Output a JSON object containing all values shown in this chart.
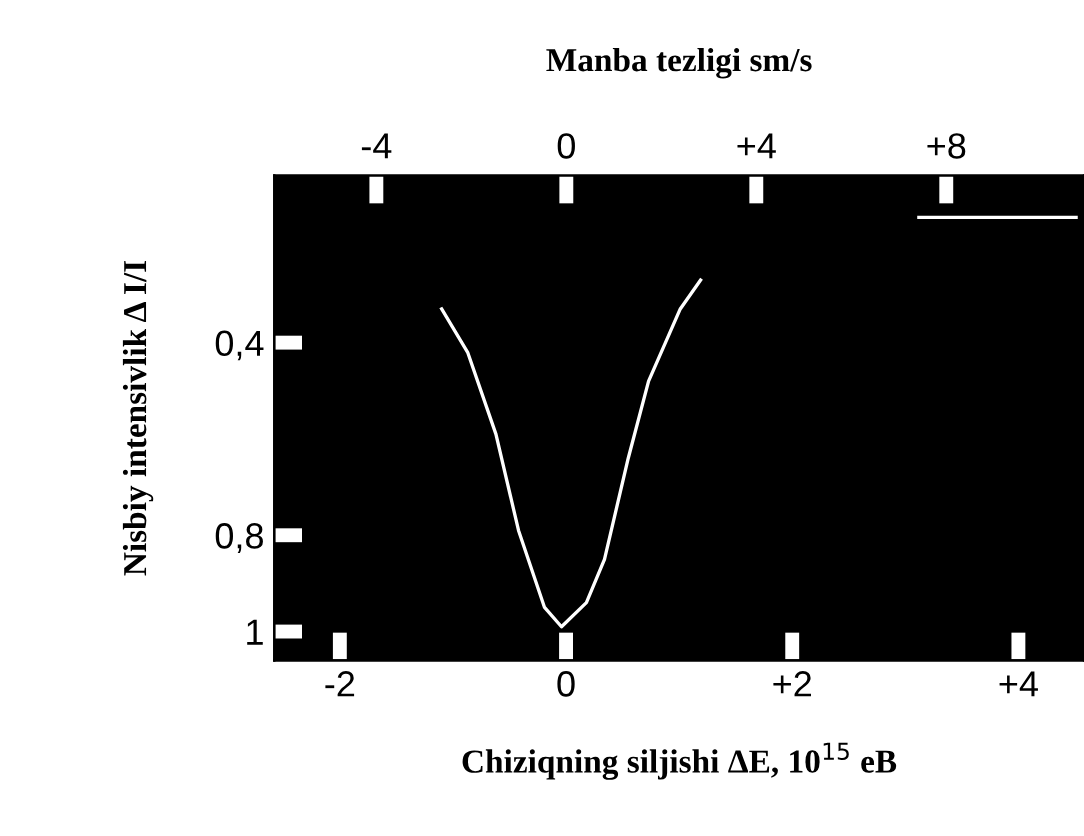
{
  "chart_data": {
    "type": "line",
    "xlabel": "Chiziqning siljishi ΔE, 10$^{15}$ eB",
    "ylabel": "Nisbiy intensivlik Δ I/I",
    "x2label": "Manba tezligi sm/s",
    "x": [
      -1.1,
      -0.87,
      -0.62,
      -0.42,
      -0.19,
      -0.04,
      0.18,
      0.34,
      0.55,
      0.73,
      1.01,
      1.19,
      null,
      3.12,
      4.51
    ],
    "series": [
      {
        "color": "#ffffff",
        "values": [
          0.33,
          0.42,
          0.59,
          0.79,
          0.95,
          0.99,
          0.94,
          0.85,
          0.64,
          0.48,
          0.33,
          0.27,
          null,
          0.14,
          0.14
        ]
      }
    ],
    "xlim": [
      -2.58,
      4.58
    ],
    "xticks": [
      -2,
      0,
      {
        "value": 2,
        "label": "+2"
      },
      {
        "value": 4,
        "label": "+4"
      }
    ],
    "x2lim": [
      -6.15,
      10.9
    ],
    "x2ticks": [
      -4,
      0,
      {
        "value": 4,
        "label": "+4"
      },
      {
        "value": 8,
        "label": "+8"
      }
    ],
    "ylim": [
      1.06,
      0.053
    ],
    "yticks": [
      {
        "value": 0.4,
        "label": "0,4"
      },
      {
        "value": 0.8,
        "label": "0,8"
      },
      1
    ],
    "grid": false,
    "legend": false
  }
}
